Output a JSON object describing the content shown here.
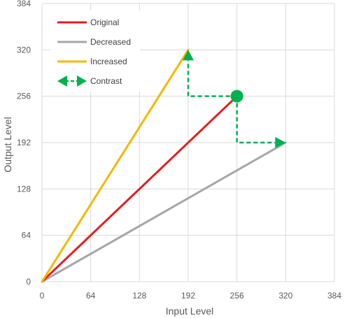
{
  "chart_data": {
    "type": "line",
    "xlabel": "Input Level",
    "ylabel": "Output Level",
    "xlim": [
      0,
      384
    ],
    "ylim": [
      0,
      384
    ],
    "xticks": [
      0,
      64,
      128,
      192,
      256,
      320,
      384
    ],
    "yticks": [
      0,
      64,
      128,
      192,
      256,
      320,
      384
    ],
    "grid": true,
    "legend_position": "top-left",
    "series": [
      {
        "name": "Original",
        "color": "#e61e1e",
        "x": [
          0,
          256
        ],
        "y": [
          0,
          256
        ]
      },
      {
        "name": "Decreased",
        "color": "#a6a6a6",
        "x": [
          0,
          320
        ],
        "y": [
          0,
          192
        ]
      },
      {
        "name": "Increased",
        "color": "#f5b800",
        "x": [
          0,
          192
        ],
        "y": [
          0,
          320
        ]
      }
    ],
    "contrast": {
      "name": "Contrast",
      "color": "#00b050",
      "center": [
        256,
        256
      ],
      "path_up": [
        [
          256,
          256
        ],
        [
          192,
          256
        ],
        [
          192,
          320
        ]
      ],
      "path_down": [
        [
          256,
          256
        ],
        [
          256,
          192
        ],
        [
          320,
          192
        ]
      ]
    }
  }
}
